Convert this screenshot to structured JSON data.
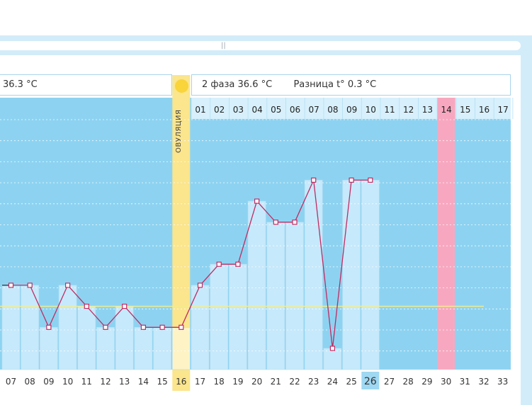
{
  "phase1": {
    "value_text": "36.3 °C"
  },
  "phase2": {
    "label": "2 фаза",
    "value_text": "36.6 °C"
  },
  "difference": {
    "label": "Разница t°",
    "value_text": "0.3 °C"
  },
  "ovulation": {
    "label": "ОВУЛЯЦИЯ",
    "cycle_day": "16"
  },
  "colors": {
    "background_blue": "#8dd3f1",
    "bar_light": "#c6e9fb",
    "line": "#c02c62",
    "marker_fill": "#ffffff",
    "ovulation": "#fbe58d",
    "ovulation_dot": "#f9d43a",
    "coverline": "#f4ee8a",
    "highlight_day": "#f7a8c0",
    "current_day_bg": "#9fd8f2"
  },
  "chart_data": {
    "type": "line",
    "cycle_days": [
      "07",
      "08",
      "09",
      "10",
      "11",
      "12",
      "13",
      "14",
      "15",
      "16",
      "17",
      "18",
      "19",
      "20",
      "21",
      "22",
      "23",
      "24",
      "25",
      "26",
      "27",
      "28",
      "29",
      "30",
      "31",
      "32",
      "33"
    ],
    "phase2_day_labels": [
      "01",
      "02",
      "03",
      "04",
      "05",
      "06",
      "07",
      "08",
      "09",
      "10",
      "11",
      "12",
      "13",
      "14",
      "15",
      "16",
      "17"
    ],
    "temperatures": [
      36.6,
      36.6,
      36.4,
      36.6,
      36.5,
      36.4,
      36.5,
      36.4,
      36.4,
      36.4,
      36.6,
      36.7,
      36.7,
      37.0,
      36.9,
      36.9,
      37.1,
      36.3,
      37.1,
      37.1,
      null,
      null,
      null,
      null,
      null,
      null,
      null
    ],
    "cover_line": 36.5,
    "ovulation_day": "16",
    "current_day": "26",
    "highlight_day": "30",
    "ylim": [
      36.2,
      37.4
    ],
    "grid": true
  }
}
